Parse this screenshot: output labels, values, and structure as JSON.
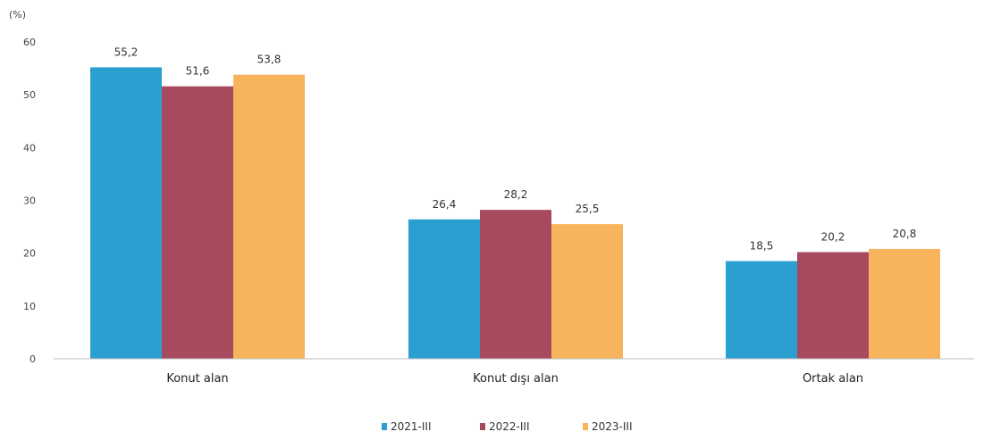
{
  "chart_data": {
    "type": "bar",
    "unit_label": "(%)",
    "categories": [
      "Konut alan",
      "Konut dışı alan",
      "Ortak alan"
    ],
    "series": [
      {
        "name": "2021-III",
        "color": "#2a9fd0",
        "values": [
          55.2,
          26.4,
          18.5
        ],
        "labels": [
          "55,2",
          "26,4",
          "18,5"
        ]
      },
      {
        "name": "2022-III",
        "color": "#a84a5e",
        "values": [
          51.6,
          28.2,
          20.2
        ],
        "labels": [
          "51,6",
          "28,2",
          "20,2"
        ]
      },
      {
        "name": "2023-III",
        "color": "#f7b45c",
        "values": [
          53.8,
          25.5,
          20.8
        ],
        "labels": [
          "53,8",
          "25,5",
          "20,8"
        ]
      }
    ],
    "yticks": [
      0,
      10,
      20,
      30,
      40,
      50,
      60
    ],
    "ylim": [
      0,
      60
    ],
    "legend_position": "bottom"
  }
}
